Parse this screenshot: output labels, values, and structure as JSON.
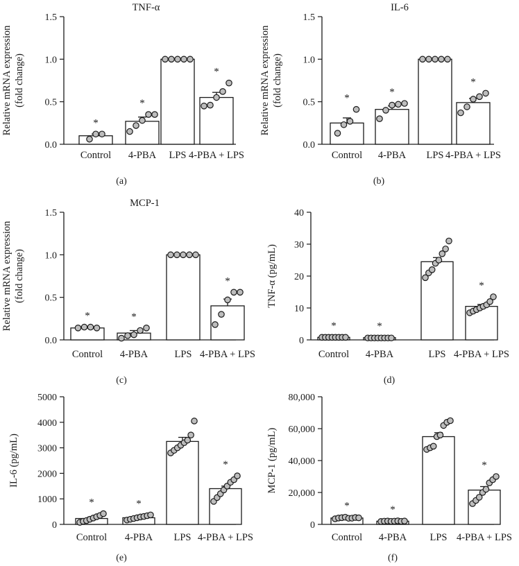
{
  "colors": {
    "bar_fill": "#ffffff",
    "dot_fill": "#bdbdbd",
    "stroke": "#1a1a1a"
  },
  "chart_data": [
    {
      "panel": "(a)",
      "type": "bar",
      "title": "TNF-α",
      "ylabel": [
        "Relative mRNA expression",
        "(fold change)"
      ],
      "ylim": [
        0,
        1.5
      ],
      "yticks": [
        "0.0",
        "0.5",
        "1.0",
        "1.5"
      ],
      "ytick_values": [
        0,
        0.5,
        1.0,
        1.5
      ],
      "categories": [
        "Control",
        "4-PBA",
        "LPS",
        "4-PBA + LPS"
      ],
      "values": [
        0.1,
        0.27,
        1.0,
        0.55
      ],
      "sem": [
        0.02,
        0.05,
        0,
        0.06
      ],
      "significance": [
        "*",
        "*",
        "",
        "*"
      ],
      "points": [
        [
          0.06,
          0.12,
          0.12
        ],
        [
          0.15,
          0.22,
          0.28,
          0.35,
          0.35
        ],
        [
          1,
          1,
          1,
          1,
          1
        ],
        [
          0.45,
          0.46,
          0.55,
          0.62,
          0.72
        ]
      ]
    },
    {
      "panel": "(b)",
      "type": "bar",
      "title": "IL-6",
      "ylabel": [
        "Relative mRNA expression",
        "(fold change)"
      ],
      "ylim": [
        0,
        1.5
      ],
      "yticks": [
        "0.0",
        "0.5",
        "1.0",
        "1.5"
      ],
      "ytick_values": [
        0,
        0.5,
        1.0,
        1.5
      ],
      "categories": [
        "Control",
        "4-PBA",
        "LPS",
        "4-PBA + LPS"
      ],
      "values": [
        0.25,
        0.41,
        1.0,
        0.49
      ],
      "sem": [
        0.06,
        0.04,
        0,
        0.05
      ],
      "significance": [
        "*",
        "*",
        "",
        "*"
      ],
      "points": [
        [
          0.13,
          0.23,
          0.27,
          0.41
        ],
        [
          0.3,
          0.4,
          0.46,
          0.47,
          0.48
        ],
        [
          1,
          1,
          1,
          1,
          1
        ],
        [
          0.37,
          0.44,
          0.53,
          0.56,
          0.6
        ]
      ]
    },
    {
      "panel": "(c)",
      "type": "bar",
      "title": "MCP-1",
      "ylabel": [
        "Relative mRNA expression",
        "(fold change)"
      ],
      "ylim": [
        0,
        1.5
      ],
      "yticks": [
        "0.0",
        "0.5",
        "1.0",
        "1.5"
      ],
      "ytick_values": [
        0,
        0.5,
        1.0,
        1.5
      ],
      "categories": [
        "Control",
        "4-PBA",
        "LPS",
        "4-PBA + LPS"
      ],
      "values": [
        0.14,
        0.08,
        1.0,
        0.4
      ],
      "sem": [
        0.01,
        0.03,
        0,
        0.08
      ],
      "significance": [
        "*",
        "*",
        "",
        "*"
      ],
      "points": [
        [
          0.14,
          0.15,
          0.15,
          0.14
        ],
        [
          0.02,
          0.05,
          0.06,
          0.11,
          0.14
        ],
        [
          1,
          1,
          1,
          1,
          1
        ],
        [
          0.18,
          0.3,
          0.47,
          0.56,
          0.56
        ]
      ]
    },
    {
      "panel": "(d)",
      "type": "bar",
      "title": "",
      "ylabel": [
        "TNF-α (pg/mL)"
      ],
      "ylim": [
        0,
        40
      ],
      "yticks": [
        "0",
        "10",
        "20",
        "30",
        "40"
      ],
      "ytick_values": [
        0,
        10,
        20,
        30,
        40
      ],
      "categories": [
        "Control",
        "4-PBA",
        "LPS",
        "4-PBA + LPS"
      ],
      "values": [
        0.8,
        0.7,
        24.5,
        10.5
      ],
      "sem": [
        0.1,
        0.1,
        1.3,
        0.6
      ],
      "significance": [
        "*",
        "*",
        "",
        "*"
      ],
      "points": [
        [
          0.8,
          0.8,
          0.8,
          0.8,
          0.8,
          0.8,
          0.8,
          0.8
        ],
        [
          0.6,
          0.6,
          0.6,
          0.6,
          0.6,
          0.6,
          0.6,
          0.6
        ],
        [
          19.5,
          21,
          22,
          24,
          25,
          27,
          28.5,
          31
        ],
        [
          8.5,
          9,
          9.5,
          10,
          10.5,
          11,
          12,
          13.5
        ]
      ]
    },
    {
      "panel": "(e)",
      "type": "bar",
      "title": "",
      "ylabel": [
        "IL-6 (pg/mL)"
      ],
      "ylim": [
        0,
        5000
      ],
      "yticks": [
        "0",
        "1000",
        "2000",
        "3000",
        "4000",
        "5000"
      ],
      "ytick_values": [
        0,
        1000,
        2000,
        3000,
        4000,
        5000
      ],
      "categories": [
        "Control",
        "4-PBA",
        "LPS",
        "4-PBA + LPS"
      ],
      "values": [
        230,
        260,
        3250,
        1400
      ],
      "sem": [
        60,
        40,
        160,
        100
      ],
      "significance": [
        "*",
        "*",
        "",
        "*"
      ],
      "points": [
        [
          80,
          120,
          150,
          200,
          250,
          300,
          350,
          420
        ],
        [
          170,
          200,
          230,
          260,
          290,
          310,
          340,
          370
        ],
        [
          2800,
          2900,
          3000,
          3100,
          3200,
          3300,
          3500,
          4050
        ],
        [
          900,
          1050,
          1200,
          1350,
          1500,
          1650,
          1750,
          1900
        ]
      ]
    },
    {
      "panel": "(f)",
      "type": "bar",
      "title": "",
      "ylabel": [
        "MCP-1 (pg/mL)"
      ],
      "ylim": [
        0,
        80000
      ],
      "yticks": [
        "0",
        "20,000",
        "40,000",
        "60,000",
        "80,000"
      ],
      "ytick_values": [
        0,
        20000,
        40000,
        60000,
        80000
      ],
      "categories": [
        "Control",
        "4-PBA",
        "LPS",
        "4-PBA + LPS"
      ],
      "values": [
        4000,
        2000,
        55000,
        21500
      ],
      "sem": [
        300,
        200,
        2500,
        2200
      ],
      "significance": [
        "*",
        "*",
        "",
        "*"
      ],
      "points": [
        [
          3500,
          4000,
          4200,
          4500,
          3800,
          3900,
          4300,
          4100
        ],
        [
          1800,
          2000,
          2100,
          1900,
          2000,
          2200,
          1900,
          2100
        ],
        [
          47000,
          48000,
          49000,
          55000,
          56000,
          62000,
          64000,
          65000
        ],
        [
          13000,
          15000,
          17000,
          20000,
          22000,
          26000,
          28000,
          30000
        ]
      ]
    }
  ]
}
